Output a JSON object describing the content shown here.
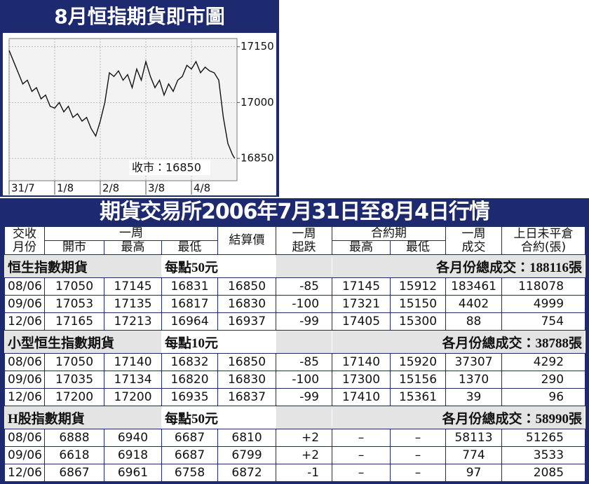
{
  "chart_data": {
    "type": "line",
    "title": "8月恒指期貨即市圖",
    "annotation": "收市：16850",
    "color": "#111111",
    "grid": true,
    "xlim": [
      0,
      5
    ],
    "xticks": [
      {
        "value": 0,
        "label": "31/7"
      },
      {
        "value": 1,
        "label": "1/8"
      },
      {
        "value": 2,
        "label": "2/8"
      },
      {
        "value": 3,
        "label": "3/8"
      },
      {
        "value": 4,
        "label": "4/8"
      }
    ],
    "ylim": [
      16790,
      17172
    ],
    "yticks": [
      16850,
      17000,
      17150
    ],
    "x": [
      0,
      0.1,
      0.2,
      0.3,
      0.4,
      0.5,
      0.6,
      0.7,
      0.8,
      0.9,
      1,
      1.1,
      1.2,
      1.3,
      1.4,
      1.5,
      1.6,
      1.7,
      1.8,
      1.9,
      2,
      2.1,
      2.2,
      2.3,
      2.4,
      2.5,
      2.6,
      2.7,
      2.8,
      2.9,
      3,
      3.1,
      3.2,
      3.3,
      3.4,
      3.5,
      3.6,
      3.7,
      3.8,
      3.9,
      4,
      4.1,
      4.2,
      4.3,
      4.4,
      4.5,
      4.6,
      4.7,
      4.8,
      4.9,
      4.95
    ],
    "values": [
      17140,
      17110,
      17080,
      17050,
      17060,
      17030,
      17040,
      17010,
      17020,
      16990,
      16985,
      17000,
      16975,
      16990,
      16960,
      16970,
      16950,
      16960,
      16930,
      16910,
      16950,
      17000,
      17080,
      17070,
      17085,
      17060,
      17075,
      17040,
      17090,
      17060,
      17110,
      17070,
      17040,
      17060,
      17020,
      17050,
      17030,
      17060,
      17070,
      17100,
      17090,
      17110,
      17080,
      17095,
      17085,
      17080,
      17060,
      16960,
      16890,
      16860,
      16850
    ]
  },
  "table": {
    "title": "期貨交易所2006年7月31日至8月4日行情",
    "header": {
      "month": "交收月份",
      "week": "一周",
      "open": "開市",
      "high": "最高",
      "low": "最低",
      "settle": "結算價",
      "change": "一周起跌",
      "contract": "合約期",
      "c_high": "最高",
      "c_low": "最低",
      "volume": "一周成交",
      "oi": "上日未平倉合約(張)"
    },
    "sections": [
      {
        "name": "恒生指數期貨",
        "unit": "每點50元",
        "total": "各月份總成交：188116張",
        "rows": [
          [
            "08/06",
            "17050",
            "17145",
            "16831",
            "16850",
            "-85",
            "17145",
            "15912",
            "183461",
            "118078"
          ],
          [
            "09/06",
            "17053",
            "17135",
            "16817",
            "16830",
            "-100",
            "17321",
            "15150",
            "4402",
            "4999"
          ],
          [
            "12/06",
            "17165",
            "17213",
            "16964",
            "16937",
            "-99",
            "17405",
            "15300",
            "88",
            "754"
          ]
        ]
      },
      {
        "name": "小型恒生指數期貨",
        "unit": "每點10元",
        "total": "各月份總成交：38788張",
        "rows": [
          [
            "08/06",
            "17050",
            "17140",
            "16832",
            "16850",
            "-85",
            "17140",
            "15920",
            "37307",
            "4292"
          ],
          [
            "09/06",
            "17035",
            "17134",
            "16820",
            "16830",
            "-100",
            "17300",
            "15156",
            "1370",
            "290"
          ],
          [
            "12/06",
            "17200",
            "17200",
            "16935",
            "16837",
            "-99",
            "17410",
            "15361",
            "39",
            "96"
          ]
        ]
      },
      {
        "name": "H股指數期貨",
        "unit": "每點50元",
        "total": "各月份總成交：58990張",
        "rows": [
          [
            "08/06",
            "6888",
            "6940",
            "6687",
            "6810",
            "+2",
            "–",
            "–",
            "58113",
            "51265"
          ],
          [
            "09/06",
            "6618",
            "6918",
            "6687",
            "6799",
            "+2",
            "–",
            "–",
            "774",
            "3533"
          ],
          [
            "12/06",
            "6867",
            "6961",
            "6758",
            "6872",
            "-1",
            "–",
            "–",
            "97",
            "2085"
          ]
        ]
      }
    ]
  }
}
